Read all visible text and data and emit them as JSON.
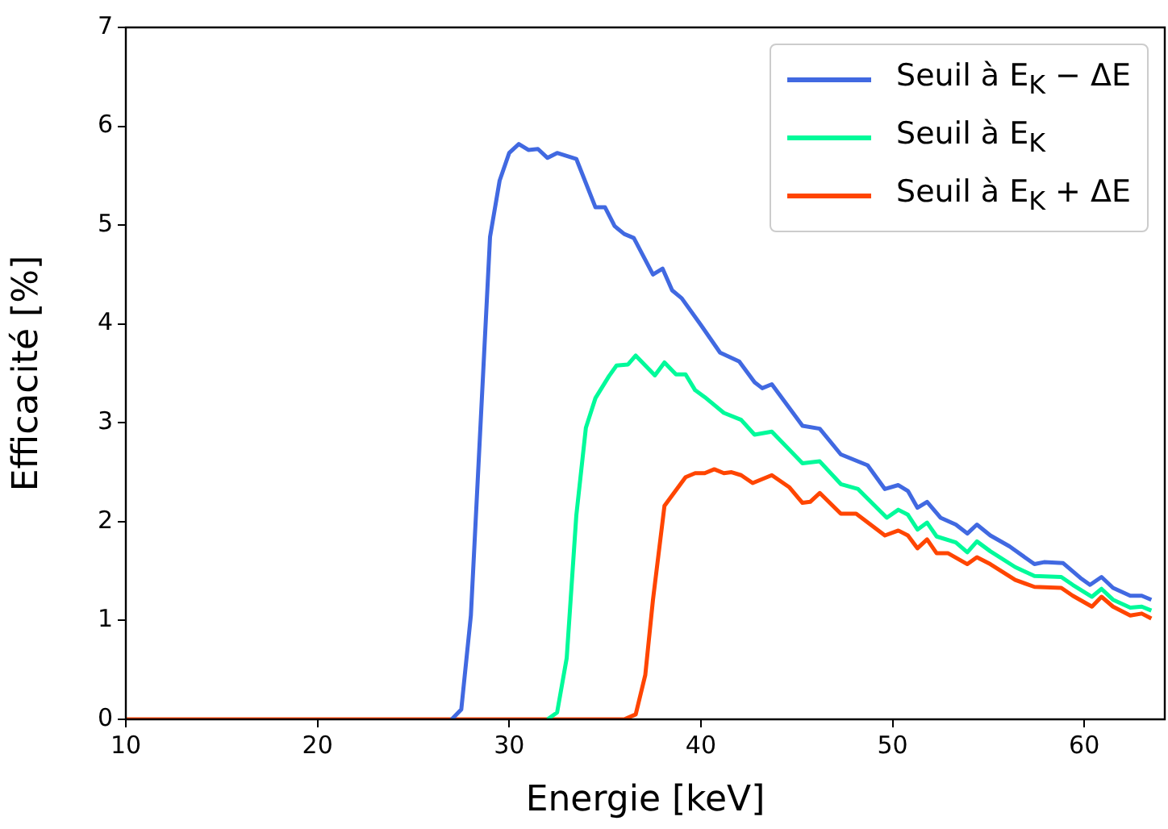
{
  "chart_data": {
    "type": "line",
    "xlabel": "Energie [keV]",
    "ylabel": "Efficacité [%]",
    "xlim": [
      10,
      64.2
    ],
    "xticks": [
      10,
      20,
      30,
      40,
      50,
      60
    ],
    "ylim": [
      0,
      7
    ],
    "yticks": [
      0,
      1,
      2,
      3,
      4,
      5,
      6,
      7
    ],
    "grid": false,
    "legend": "top right",
    "marker": "none",
    "line_style": "solid",
    "series": [
      {
        "name": "Seuil à E$_{K}$ − ΔE",
        "color": "#4169e1",
        "x": [
          27,
          27.5,
          28,
          29,
          29.5,
          30,
          30.5,
          31,
          31.5,
          32,
          32.5,
          33.5,
          34.5,
          35,
          35.5,
          36,
          36.5,
          37.5,
          38,
          38.5,
          39,
          40,
          41,
          42,
          42.8,
          43.2,
          43.7,
          45.3,
          46.2,
          47.3,
          48.7,
          49.6,
          50.3,
          50.8,
          51.3,
          51.8,
          52.5,
          53.3,
          53.9,
          54.4,
          55.1,
          56.1,
          57.4,
          57.9,
          58.9,
          59.8,
          60.3,
          60.9,
          61.5,
          62.4,
          63,
          63.5
        ],
        "values": [
          0,
          0.1,
          1.05,
          4.88,
          5.45,
          5.73,
          5.82,
          5.76,
          5.77,
          5.68,
          5.73,
          5.67,
          5.18,
          5.18,
          4.99,
          4.91,
          4.87,
          4.5,
          4.56,
          4.34,
          4.26,
          3.99,
          3.71,
          3.62,
          3.41,
          3.35,
          3.39,
          2.97,
          2.94,
          2.68,
          2.57,
          2.33,
          2.37,
          2.31,
          2.14,
          2.2,
          2.04,
          1.97,
          1.88,
          1.97,
          1.86,
          1.75,
          1.57,
          1.59,
          1.58,
          1.43,
          1.36,
          1.44,
          1.33,
          1.25,
          1.25,
          1.21
        ]
      },
      {
        "name": "Seuil à E$_{K}$",
        "color": "#00fa9a",
        "x": [
          32,
          32.5,
          33,
          33.5,
          34,
          34.5,
          35.2,
          35.6,
          36.2,
          36.6,
          37.6,
          38.1,
          38.7,
          39.2,
          39.7,
          40.2,
          41.2,
          42.1,
          42.8,
          43.7,
          45.3,
          46.2,
          47.3,
          48.2,
          49.7,
          50.3,
          50.8,
          51.3,
          51.8,
          52.3,
          53.3,
          53.9,
          54.4,
          55.1,
          56.4,
          57.4,
          58.8,
          59.4,
          60.4,
          60.9,
          61.5,
          62.4,
          63,
          63.5
        ],
        "values": [
          0,
          0.07,
          0.62,
          2.06,
          2.95,
          3.25,
          3.47,
          3.58,
          3.59,
          3.68,
          3.48,
          3.61,
          3.49,
          3.49,
          3.33,
          3.26,
          3.1,
          3.03,
          2.88,
          2.91,
          2.59,
          2.61,
          2.38,
          2.33,
          2.04,
          2.12,
          2.07,
          1.92,
          1.99,
          1.85,
          1.79,
          1.69,
          1.8,
          1.7,
          1.54,
          1.45,
          1.44,
          1.36,
          1.24,
          1.32,
          1.21,
          1.13,
          1.14,
          1.1
        ]
      },
      {
        "name": "Seuil à E$_{K}$ + ΔE",
        "color": "#ff4500",
        "x": [
          10,
          36,
          36.6,
          37.1,
          37.5,
          38.1,
          39.2,
          39.7,
          40.2,
          40.7,
          41.2,
          41.6,
          42.1,
          42.7,
          43.7,
          44.6,
          45.3,
          45.7,
          46.2,
          47.3,
          48.1,
          49.6,
          50.3,
          50.8,
          51.3,
          51.8,
          52.3,
          52.9,
          53.9,
          54.4,
          55.1,
          56.4,
          57.4,
          58.8,
          59.4,
          60.4,
          60.9,
          61.5,
          62.4,
          63,
          63.5
        ],
        "values": [
          0,
          0,
          0.05,
          0.45,
          1.21,
          2.16,
          2.45,
          2.49,
          2.49,
          2.53,
          2.49,
          2.5,
          2.47,
          2.39,
          2.47,
          2.35,
          2.19,
          2.2,
          2.29,
          2.08,
          2.08,
          1.86,
          1.91,
          1.86,
          1.73,
          1.82,
          1.68,
          1.68,
          1.57,
          1.64,
          1.57,
          1.41,
          1.34,
          1.33,
          1.25,
          1.14,
          1.24,
          1.14,
          1.05,
          1.07,
          1.02
        ]
      }
    ]
  }
}
